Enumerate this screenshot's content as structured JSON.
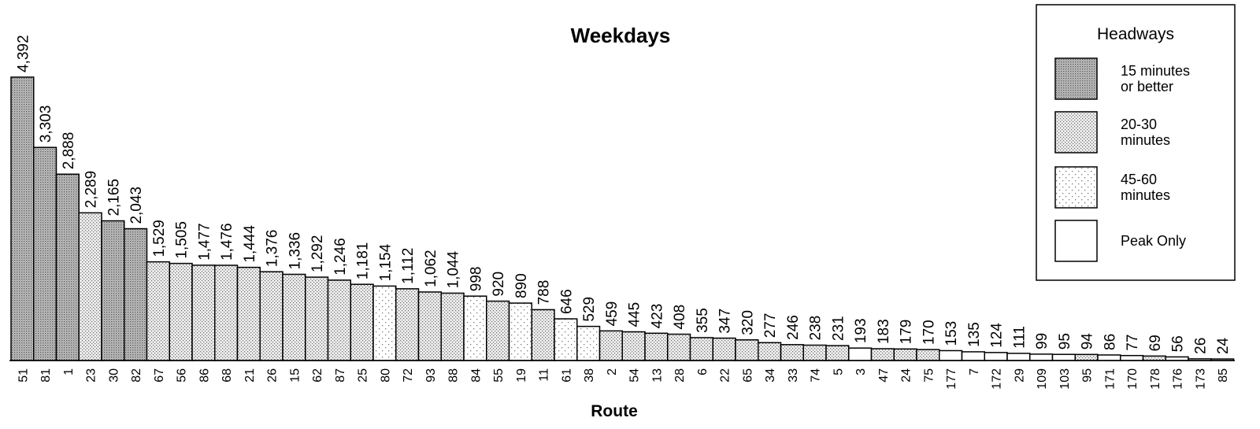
{
  "chart_data": {
    "type": "bar",
    "title": "Weekdays",
    "xlabel": "Route",
    "ylabel": "",
    "ylim": [
      0,
      4392
    ],
    "legend": {
      "title": "Headways",
      "position": "top-right",
      "entries": [
        {
          "key": "h15",
          "lines": [
            "15 minutes",
            "or better"
          ]
        },
        {
          "key": "h2030",
          "lines": [
            "20-30",
            "minutes"
          ]
        },
        {
          "key": "h4560",
          "lines": [
            "45-60",
            "minutes"
          ]
        },
        {
          "key": "peak",
          "lines": [
            "Peak Only"
          ]
        }
      ]
    },
    "categories": [
      "51",
      "81",
      "1",
      "23",
      "30",
      "82",
      "67",
      "56",
      "86",
      "68",
      "21",
      "26",
      "15",
      "62",
      "87",
      "25",
      "80",
      "72",
      "93",
      "88",
      "84",
      "55",
      "19",
      "11",
      "61",
      "38",
      "2",
      "54",
      "13",
      "28",
      "6",
      "22",
      "65",
      "34",
      "33",
      "74",
      "5",
      "3",
      "47",
      "24",
      "75",
      "177",
      "7",
      "172",
      "29",
      "109",
      "103",
      "95",
      "171",
      "170",
      "178",
      "176",
      "173",
      "85"
    ],
    "values": [
      4392,
      3303,
      2888,
      2289,
      2165,
      2043,
      1529,
      1505,
      1477,
      1476,
      1444,
      1376,
      1336,
      1292,
      1246,
      1181,
      1154,
      1112,
      1062,
      1044,
      998,
      920,
      890,
      788,
      646,
      529,
      459,
      445,
      423,
      408,
      355,
      347,
      320,
      277,
      246,
      238,
      231,
      193,
      183,
      179,
      170,
      153,
      135,
      124,
      111,
      99,
      95,
      94,
      86,
      77,
      69,
      56,
      26,
      24
    ],
    "value_labels": [
      "4,392",
      "3,303",
      "2,888",
      "2,289",
      "2,165",
      "2,043",
      "1,529",
      "1,505",
      "1,477",
      "1,476",
      "1,444",
      "1,376",
      "1,336",
      "1,292",
      "1,246",
      "1,181",
      "1,154",
      "1,112",
      "1,062",
      "1,044",
      "998",
      "920",
      "890",
      "788",
      "646",
      "529",
      "459",
      "445",
      "423",
      "408",
      "355",
      "347",
      "320",
      "277",
      "246",
      "238",
      "231",
      "193",
      "183",
      "179",
      "170",
      "153",
      "135",
      "124",
      "111",
      "99",
      "95",
      "94",
      "86",
      "77",
      "69",
      "56",
      "26",
      "24"
    ],
    "headway": [
      "h15",
      "h15",
      "h15",
      "h2030",
      "h15",
      "h15",
      "h2030",
      "h2030",
      "h2030",
      "h2030",
      "h2030",
      "h2030",
      "h2030",
      "h2030",
      "h2030",
      "h2030",
      "h4560",
      "h2030",
      "h2030",
      "h2030",
      "h4560",
      "h2030",
      "h4560",
      "h2030",
      "h4560",
      "h4560",
      "h2030",
      "h2030",
      "h2030",
      "h2030",
      "h2030",
      "h2030",
      "h2030",
      "h2030",
      "h2030",
      "h2030",
      "h2030",
      "peak",
      "h2030",
      "h2030",
      "h2030",
      "peak",
      "peak",
      "peak",
      "peak",
      "peak",
      "peak",
      "h2030",
      "peak",
      "peak",
      "h2030",
      "peak",
      "peak",
      "peak"
    ],
    "grid": false,
    "colors": {
      "bar_fill": "#e8e8e8",
      "outline": "#000000",
      "dark_dot": "#5a5a5a"
    }
  }
}
